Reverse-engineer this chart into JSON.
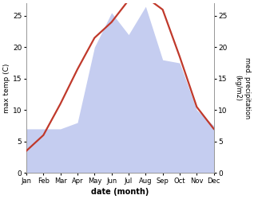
{
  "months": [
    "Jan",
    "Feb",
    "Mar",
    "Apr",
    "May",
    "Jun",
    "Jul",
    "Aug",
    "Sep",
    "Oct",
    "Nov",
    "Dec"
  ],
  "month_indices": [
    0,
    1,
    2,
    3,
    4,
    5,
    6,
    7,
    8,
    9,
    10,
    11
  ],
  "temperature": [
    3.5,
    6.0,
    11.0,
    16.5,
    21.5,
    24.0,
    27.5,
    28.0,
    26.0,
    18.5,
    10.5,
    7.0
  ],
  "precipitation": [
    7.0,
    7.0,
    7.0,
    8.0,
    20.0,
    25.5,
    22.0,
    26.5,
    18.0,
    17.5,
    10.0,
    7.5
  ],
  "temp_color": "#c0392b",
  "precip_fill_color": "#c5cdf0",
  "temp_ylim": [
    0,
    27
  ],
  "precip_ylim": [
    0,
    27
  ],
  "temp_yticks": [
    0,
    5,
    10,
    15,
    20,
    25
  ],
  "precip_yticks": [
    0,
    5,
    10,
    15,
    20,
    25
  ],
  "xlabel": "date (month)",
  "ylabel_left": "max temp (C)",
  "ylabel_right": "med. precipitation\n(kg/m2)",
  "background_color": "#ffffff",
  "spine_color": "#999999"
}
